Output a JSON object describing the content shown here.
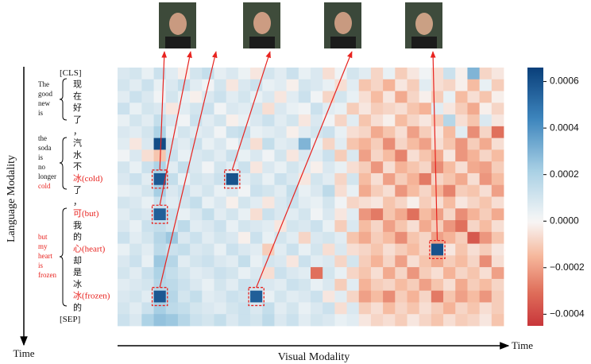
{
  "chart_data": {
    "type": "heatmap",
    "rows": [
      "[CLS]",
      "现",
      "在",
      "好",
      "了",
      "，",
      "汽",
      "水",
      "不",
      "冰(cold)",
      "了",
      "，",
      "可(but)",
      "我",
      "的",
      "心(heart)",
      "却",
      "是",
      "冰",
      "冰(frozen)",
      "的",
      "[SEP]"
    ],
    "translations": [
      [
        "The",
        "good",
        "new",
        "is"
      ],
      [
        "the",
        "soda",
        "is",
        "no",
        "longer",
        "cold"
      ],
      [
        "but",
        "my",
        "heart",
        "is",
        "frozen"
      ]
    ],
    "values": [
      [
        8e-05,
        0.0001,
        4e-05,
        0.00012,
        6e-05,
        -2e-05,
        0.0001,
        0.00014,
        5e-05,
        8e-05,
        3e-05,
        -4e-05,
        0.0001,
        6e-05,
        0.00012,
        4e-05,
        8e-05,
        -6e-05,
        2e-05,
        0.0001,
        6e-05,
        -8e-05,
        4e-05,
        -0.0001,
        -4e-05,
        2e-05,
        -6e-05,
        0.00012,
        -2e-05,
        0.0003,
        -8e-05,
        -4e-05
      ],
      [
        0.0001,
        6e-05,
        0.00012,
        4e-05,
        8e-05,
        0.00014,
        6e-05,
        2e-05,
        0.0001,
        -4e-05,
        8e-05,
        0.00012,
        4e-05,
        6e-05,
        -2e-05,
        0.0001,
        8e-05,
        4e-05,
        -6e-05,
        6e-05,
        -0.00012,
        -8e-05,
        -0.00016,
        -4e-05,
        -0.0001,
        6e-05,
        -6e-05,
        -8e-05,
        -2e-05,
        -0.00014,
        4e-05,
        -0.0001
      ],
      [
        6e-05,
        0.00012,
        8e-05,
        2e-05,
        0.0001,
        4e-05,
        -2e-05,
        8e-05,
        0.00012,
        6e-05,
        0.0001,
        4e-05,
        8e-05,
        -4e-05,
        6e-05,
        0.00012,
        2e-05,
        -8e-05,
        0.0001,
        4e-05,
        -6e-05,
        -0.00014,
        -4e-05,
        -0.00018,
        -8e-05,
        -2e-05,
        -0.0001,
        4e-05,
        -0.00014,
        -6e-05,
        -0.00012,
        -2e-05
      ],
      [
        0.00012,
        4e-05,
        0.0001,
        8e-05,
        -4e-05,
        6e-05,
        0.0001,
        0.00012,
        2e-05,
        8e-05,
        6e-05,
        0.0001,
        -6e-05,
        8e-05,
        4e-05,
        2e-05,
        0.00012,
        6e-05,
        4e-05,
        -0.0001,
        -4e-05,
        -0.0001,
        -8e-05,
        -6e-05,
        -0.00012,
        -0.00016,
        6e-05,
        -4e-05,
        -0.0001,
        -0.00018,
        -2e-05,
        -8e-05
      ],
      [
        4e-05,
        0.0001,
        6e-05,
        0.00014,
        8e-05,
        2e-05,
        0.00012,
        6e-05,
        0.0001,
        -2e-05,
        4e-05,
        8e-05,
        0.00012,
        6e-05,
        0.0001,
        -4e-05,
        8e-05,
        2e-05,
        -8e-05,
        6e-05,
        -0.00012,
        -6e-05,
        -2e-05,
        -0.00014,
        -8e-05,
        -4e-05,
        -0.0001,
        0.00018,
        -6e-05,
        -0.00012,
        8e-05,
        -4e-05
      ],
      [
        8e-05,
        6e-05,
        0.0001,
        0.0002,
        4e-05,
        0.0001,
        6e-05,
        8e-05,
        2e-05,
        0.00012,
        0.00014,
        4e-05,
        6e-05,
        8e-05,
        -2e-05,
        6e-05,
        0.0001,
        0.00012,
        4e-05,
        -6e-05,
        -8e-05,
        -0.00018,
        -0.00012,
        -6e-05,
        -0.0002,
        -0.0001,
        -4e-05,
        -0.00014,
        6e-05,
        -0.00024,
        -8e-05,
        -0.0003
      ],
      [
        6e-05,
        -4e-05,
        8e-05,
        0.00062,
        0.0001,
        6e-05,
        0.00012,
        4e-05,
        8e-05,
        2e-05,
        0.0001,
        -6e-05,
        0.00014,
        6e-05,
        8e-05,
        0.0003,
        4e-05,
        -8e-05,
        6e-05,
        -0.00012,
        -0.00016,
        -0.0001,
        -0.00024,
        -8e-05,
        -0.00014,
        -0.0002,
        -6e-05,
        -0.00012,
        -0.00022,
        -0.0001,
        -0.00018,
        -6e-05
      ],
      [
        2e-05,
        8e-05,
        -6e-05,
        -0.00012,
        0.00012,
        4e-05,
        8e-05,
        0.0001,
        6e-05,
        0.00012,
        4e-05,
        8e-05,
        2e-05,
        0.0001,
        -4e-05,
        8e-05,
        6e-05,
        0.00012,
        -0.0001,
        8e-05,
        -0.0002,
        -8e-05,
        -0.00014,
        -0.00026,
        -6e-05,
        -0.00012,
        -0.00018,
        -4e-05,
        -0.00022,
        -0.00016,
        -8e-05,
        -0.00014
      ],
      [
        0.0001,
        4e-05,
        0.00012,
        0.0002,
        6e-05,
        0.00014,
        8e-05,
        2e-05,
        0.0001,
        6e-05,
        0.00012,
        -4e-05,
        8e-05,
        4e-05,
        0.0001,
        6e-05,
        -2e-05,
        8e-05,
        4e-05,
        -6e-05,
        -0.0001,
        -0.00022,
        -6e-05,
        -0.00016,
        -0.00012,
        -8e-05,
        -0.00024,
        -0.00014,
        -6e-05,
        -0.00018,
        -0.0002,
        -0.0001
      ],
      [
        8e-05,
        0.00012,
        6e-05,
        0.00058,
        0.00014,
        4e-05,
        0.0001,
        8e-05,
        0.00012,
        0.0006,
        6e-05,
        0.0001,
        4e-05,
        0.00012,
        8e-05,
        -4e-05,
        0.0001,
        6e-05,
        -8e-05,
        0.0001,
        -0.00014,
        -6e-05,
        -0.0002,
        -0.0001,
        -0.00016,
        -0.00028,
        -8e-05,
        -0.00012,
        -0.00018,
        -6e-05,
        -0.00022,
        -0.00014
      ],
      [
        4e-05,
        6e-05,
        0.0001,
        0.00022,
        8e-05,
        0.00012,
        6e-05,
        0.0001,
        4e-05,
        8e-05,
        2e-05,
        0.00012,
        0.0001,
        6e-05,
        0.00014,
        4e-05,
        8e-05,
        0.00016,
        -6e-05,
        4e-05,
        -0.00018,
        -0.0001,
        -6e-05,
        -0.00022,
        -0.00014,
        -8e-05,
        -0.00016,
        -0.00026,
        -0.0001,
        -0.00012,
        -6e-05,
        -0.0002
      ],
      [
        0.0001,
        8e-05,
        4e-05,
        0.00012,
        6e-05,
        0.0001,
        0.00014,
        4e-05,
        8e-05,
        -2e-05,
        0.0001,
        6e-05,
        -4e-05,
        8e-05,
        0.00012,
        6e-05,
        4e-05,
        0.0001,
        2e-05,
        -8e-05,
        -6e-05,
        -4e-05,
        -0.00012,
        -8e-05,
        -2e-05,
        -0.0001,
        -6e-05,
        -0.00014,
        -4e-05,
        -8e-05,
        -0.00012,
        -6e-05
      ],
      [
        6e-05,
        0.0001,
        8e-05,
        0.00056,
        0.00012,
        4e-05,
        8e-05,
        0.00014,
        6e-05,
        0.0001,
        4e-05,
        -6e-05,
        0.00012,
        8e-05,
        6e-05,
        0.0001,
        2e-05,
        8e-05,
        -4e-05,
        6e-05,
        -0.00022,
        -0.00028,
        -0.00012,
        -0.00018,
        -0.0003,
        -0.00014,
        -0.0002,
        -8e-05,
        -0.00024,
        -0.00016,
        -0.0001,
        -0.00018
      ],
      [
        8e-05,
        4e-05,
        0.00012,
        0.00014,
        0.0001,
        0.00016,
        6e-05,
        8e-05,
        0.00012,
        4e-05,
        0.0001,
        8e-05,
        6e-05,
        -4e-05,
        0.0001,
        8e-05,
        0.00012,
        4e-05,
        -0.0001,
        8e-05,
        -0.00014,
        -8e-05,
        -0.0002,
        -0.00012,
        -6e-05,
        -0.00018,
        -0.0001,
        -0.00022,
        -0.0003,
        -8e-05,
        -0.00014,
        -6e-05
      ],
      [
        0.00012,
        6e-05,
        0.0001,
        0.00018,
        0.00024,
        8e-05,
        0.00012,
        6e-05,
        0.0001,
        8e-05,
        -2e-05,
        0.00012,
        4e-05,
        0.0001,
        6e-05,
        -8e-05,
        8e-05,
        0.0001,
        6e-05,
        -0.00012,
        -0.00018,
        -0.0001,
        -0.00014,
        -0.00024,
        -0.00012,
        -8e-05,
        -0.0002,
        -0.00016,
        -0.0001,
        -0.00036,
        -0.00022,
        -0.00012
      ],
      [
        4e-05,
        0.0001,
        6e-05,
        0.00016,
        0.00012,
        0.00014,
        8e-05,
        0.0001,
        4e-05,
        0.00012,
        8e-05,
        6e-05,
        -0.0001,
        6e-05,
        0.00012,
        4e-05,
        0.0001,
        -6e-05,
        8e-05,
        -6e-05,
        -8e-05,
        -0.00012,
        -6e-05,
        -0.0001,
        -0.00014,
        -8e-05,
        0.0006,
        -4e-05,
        -0.00012,
        -6e-05,
        -0.0001,
        -4e-05
      ],
      [
        8e-05,
        0.00012,
        4e-05,
        0.00024,
        0.00018,
        6e-05,
        0.0001,
        0.00012,
        8e-05,
        6e-05,
        0.00014,
        4e-05,
        0.0001,
        8e-05,
        -4e-05,
        0.00012,
        6e-05,
        8e-05,
        -8e-05,
        0.0001,
        -0.0001,
        -0.00016,
        -8e-05,
        -0.0002,
        -6e-05,
        -0.00012,
        -0.00018,
        -0.0001,
        -0.00014,
        -8e-05,
        -0.00024,
        -6e-05
      ],
      [
        0.0001,
        6e-05,
        0.00012,
        0.0002,
        0.00014,
        0.0001,
        6e-05,
        8e-05,
        0.00012,
        0.0001,
        4e-05,
        8e-05,
        -6e-05,
        0.00012,
        8e-05,
        6e-05,
        -0.0003,
        0.0001,
        4e-05,
        -8e-05,
        -0.00012,
        -6e-05,
        -0.00018,
        -8e-05,
        -0.00022,
        -0.0001,
        -6e-05,
        -0.00016,
        -8e-05,
        -0.00012,
        -6e-05,
        -0.0002
      ],
      [
        6e-05,
        8e-05,
        0.0001,
        0.00018,
        0.00016,
        0.00012,
        8e-05,
        4e-05,
        0.0001,
        6e-05,
        0.00012,
        0.0001,
        8e-05,
        6e-05,
        0.00012,
        0.0001,
        4e-05,
        8e-05,
        -0.0001,
        6e-05,
        -0.00016,
        -0.0001,
        -8e-05,
        -0.00014,
        -0.0001,
        -0.0002,
        -0.00012,
        -6e-05,
        -0.00018,
        -0.0001,
        -0.00014,
        -8e-05
      ],
      [
        8e-05,
        0.0001,
        6e-05,
        0.00058,
        0.00018,
        0.0001,
        0.00014,
        6e-05,
        8e-05,
        0.00012,
        0.0001,
        0.00056,
        4e-05,
        0.0001,
        6e-05,
        8e-05,
        0.00012,
        -4e-05,
        6e-05,
        -8e-05,
        -0.0002,
        -0.00014,
        -0.00024,
        -0.0001,
        -0.00016,
        -8e-05,
        -0.00028,
        -0.00012,
        -0.0002,
        -0.00014,
        -0.00022,
        -0.0001
      ],
      [
        0.0001,
        6e-05,
        0.00012,
        0.00022,
        0.00016,
        0.00014,
        0.0001,
        8e-05,
        6e-05,
        0.0001,
        0.00012,
        8e-05,
        0.00014,
        6e-05,
        0.0001,
        4e-05,
        8e-05,
        0.00012,
        -6e-05,
        8e-05,
        -0.0001,
        -6e-05,
        -0.00014,
        -8e-05,
        -0.00012,
        -6e-05,
        -0.0001,
        -0.00016,
        -8e-05,
        -0.00012,
        -6e-05,
        -0.0001
      ],
      [
        0.00012,
        8e-05,
        0.0002,
        0.00026,
        0.00024,
        0.00018,
        0.00012,
        0.0001,
        0.00014,
        8e-05,
        0.00012,
        0.0001,
        0.00016,
        8e-05,
        0.00012,
        6e-05,
        0.0001,
        8e-05,
        4e-05,
        6e-05,
        -4e-05,
        -8e-05,
        -6e-05,
        -0.0001,
        -4e-05,
        -8e-05,
        -0.00012,
        -6e-05,
        -0.0001,
        -8e-05,
        -4e-05,
        -0.00012
      ]
    ],
    "colorbar": {
      "lim": [
        -0.00045,
        0.00066
      ],
      "ticks": [
        {
          "value": -0.0004,
          "label": "−0.0004"
        },
        {
          "value": -0.0002,
          "label": "−0.0002"
        },
        {
          "value": 0,
          "label": "0.0000"
        },
        0.0002,
        0.0004,
        0.0006
      ],
      "negative_colors": [
        "#f7f7f7",
        "#f6b89c",
        "#e0705c",
        "#c8363a"
      ],
      "positive_colors": [
        "#f7f7f7",
        "#a7cfe4",
        "#3d85bd",
        "#0a3f7a"
      ]
    },
    "ylabel": "Language Modality",
    "xlabel": "Visual Modality",
    "y_time_label": "Time",
    "x_time_label": "Time"
  }
}
